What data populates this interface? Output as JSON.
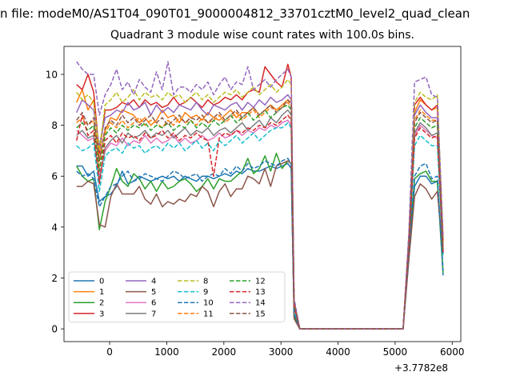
{
  "figure_title": "n file: modeM0/AS1T04_090T01_9000004812_33701cztM0_level2_quad_clean",
  "chart_data": {
    "type": "line",
    "title": "Quadrant 3 module wise count rates with 100.0s bins.",
    "xlabel": "",
    "ylabel": "",
    "x_offset_label": "+3.7782e8",
    "xlim": [
      -800,
      6150
    ],
    "ylim": [
      -0.5,
      11.1
    ],
    "xticks": [
      0,
      1000,
      2000,
      3000,
      4000,
      5000,
      6000
    ],
    "yticks": [
      0,
      2,
      4,
      6,
      8,
      10
    ],
    "grid": false,
    "legend_position": "lower left",
    "legend_columns": 4,
    "x": [
      -580,
      -480,
      -380,
      -280,
      -180,
      -80,
      20,
      120,
      220,
      320,
      420,
      520,
      620,
      720,
      820,
      920,
      1020,
      1120,
      1220,
      1320,
      1420,
      1520,
      1620,
      1720,
      1820,
      1920,
      2020,
      2120,
      2220,
      2320,
      2420,
      2520,
      2620,
      2720,
      2820,
      2920,
      3020,
      3120,
      3180,
      3230,
      3330,
      5140,
      5240,
      5340,
      5440,
      5540,
      5640,
      5740,
      5840
    ],
    "series": [
      {
        "name": "0",
        "color": "#1f77b4",
        "style": "solid",
        "values": [
          6.4,
          6.4,
          6.0,
          6.2,
          5.0,
          5.2,
          5.3,
          5.6,
          6.2,
          5.7,
          5.8,
          6.0,
          5.9,
          5.8,
          5.9,
          6.0,
          5.9,
          6.0,
          5.8,
          6.0,
          5.9,
          5.8,
          6.0,
          6.0,
          5.9,
          6.0,
          6.1,
          6.0,
          6.2,
          6.1,
          6.3,
          6.2,
          6.2,
          6.3,
          6.4,
          6.3,
          6.4,
          6.5,
          6.3,
          0.6,
          0.0,
          0.0,
          3.0,
          5.6,
          6.0,
          6.0,
          5.7,
          5.8,
          2.1
        ]
      },
      {
        "name": "1",
        "color": "#ff7f0e",
        "style": "solid",
        "values": [
          8.9,
          9.4,
          8.6,
          9.0,
          6.6,
          7.8,
          8.3,
          8.2,
          8.6,
          8.5,
          8.4,
          8.1,
          8.3,
          8.0,
          8.2,
          8.6,
          8.3,
          8.4,
          8.1,
          8.5,
          8.3,
          8.4,
          8.2,
          8.5,
          8.3,
          8.2,
          8.4,
          8.6,
          8.3,
          8.5,
          8.5,
          8.7,
          8.4,
          8.6,
          8.8,
          8.6,
          8.8,
          9.0,
          8.9,
          1.0,
          0.0,
          0.0,
          3.5,
          8.5,
          9.0,
          8.8,
          8.6,
          8.7,
          3.4
        ]
      },
      {
        "name": "2",
        "color": "#2ca02c",
        "style": "solid",
        "values": [
          6.4,
          6.0,
          5.8,
          5.9,
          3.9,
          5.0,
          5.6,
          6.3,
          5.8,
          5.6,
          6.1,
          5.9,
          5.5,
          5.8,
          5.4,
          5.8,
          5.5,
          5.6,
          5.8,
          5.9,
          5.7,
          5.4,
          5.6,
          5.9,
          5.5,
          5.9,
          5.8,
          5.8,
          6.0,
          6.2,
          6.7,
          6.1,
          6.3,
          6.8,
          6.2,
          6.9,
          6.3,
          6.6,
          6.5,
          0.5,
          0.0,
          0.0,
          3.0,
          5.9,
          6.1,
          6.2,
          5.8,
          5.8,
          2.2
        ]
      },
      {
        "name": "3",
        "color": "#d62728",
        "style": "solid",
        "values": [
          9.6,
          9.4,
          10.0,
          9.3,
          6.9,
          8.6,
          8.6,
          8.7,
          8.9,
          8.8,
          9.0,
          8.7,
          9.0,
          8.8,
          8.9,
          8.7,
          8.8,
          9.1,
          8.8,
          8.9,
          9.1,
          8.9,
          8.7,
          9.0,
          8.8,
          8.9,
          9.1,
          9.0,
          9.2,
          9.0,
          9.3,
          9.4,
          9.3,
          10.3,
          10.0,
          9.7,
          9.5,
          10.4,
          9.9,
          1.1,
          0.0,
          0.0,
          3.6,
          8.8,
          9.1,
          8.8,
          8.6,
          8.8,
          3.5
        ]
      },
      {
        "name": "4",
        "color": "#9467bd",
        "style": "solid",
        "values": [
          8.5,
          9.0,
          8.8,
          8.6,
          7.2,
          8.3,
          8.4,
          8.6,
          8.5,
          8.9,
          8.6,
          8.7,
          8.9,
          8.4,
          8.8,
          8.5,
          8.7,
          8.5,
          8.8,
          8.7,
          8.6,
          8.9,
          8.6,
          8.4,
          8.8,
          8.7,
          8.6,
          8.8,
          8.9,
          8.6,
          8.9,
          8.7,
          9.0,
          8.8,
          9.1,
          8.9,
          9.0,
          9.2,
          9.0,
          1.0,
          0.0,
          0.0,
          3.4,
          8.4,
          8.8,
          8.5,
          8.3,
          8.3,
          3.1
        ]
      },
      {
        "name": "5",
        "color": "#8c564b",
        "style": "solid",
        "values": [
          5.6,
          5.6,
          5.8,
          5.7,
          4.1,
          4.0,
          5.2,
          5.7,
          5.3,
          5.3,
          5.3,
          5.6,
          5.1,
          4.9,
          5.3,
          4.8,
          5.0,
          4.9,
          5.1,
          5.0,
          5.3,
          5.2,
          5.6,
          5.4,
          4.8,
          5.4,
          5.7,
          5.2,
          5.5,
          5.5,
          6.0,
          5.9,
          5.7,
          6.3,
          5.6,
          6.4,
          6.5,
          6.6,
          6.5,
          0.4,
          0.0,
          0.0,
          2.7,
          5.2,
          5.7,
          5.5,
          5.1,
          5.4,
          2.9
        ]
      },
      {
        "name": "6",
        "color": "#e377c2",
        "style": "solid",
        "values": [
          7.8,
          7.6,
          7.4,
          7.5,
          6.0,
          7.0,
          7.3,
          7.2,
          7.5,
          7.2,
          7.4,
          7.3,
          7.6,
          7.3,
          7.5,
          7.3,
          7.4,
          7.6,
          7.3,
          7.5,
          7.3,
          7.4,
          7.6,
          7.4,
          7.5,
          7.7,
          7.5,
          7.6,
          7.8,
          7.6,
          7.8,
          7.7,
          7.9,
          7.8,
          8.0,
          7.9,
          8.1,
          8.2,
          8.0,
          0.9,
          0.0,
          0.0,
          3.1,
          7.6,
          8.0,
          7.8,
          7.6,
          7.5,
          3.0
        ]
      },
      {
        "name": "7",
        "color": "#7f7f7f",
        "style": "solid",
        "values": [
          7.6,
          7.8,
          7.5,
          7.6,
          5.8,
          7.1,
          7.4,
          7.6,
          7.3,
          7.7,
          7.5,
          7.6,
          7.8,
          7.5,
          7.7,
          7.6,
          7.8,
          7.5,
          7.7,
          7.9,
          7.6,
          7.8,
          7.7,
          7.9,
          7.6,
          7.8,
          7.9,
          7.7,
          7.9,
          8.1,
          7.8,
          8.0,
          8.2,
          7.9,
          8.3,
          8.1,
          8.4,
          8.6,
          8.4,
          0.9,
          0.0,
          0.0,
          3.2,
          7.7,
          8.1,
          7.9,
          7.6,
          7.7,
          3.0
        ]
      },
      {
        "name": "8",
        "color": "#bcbd22",
        "style": "dashed",
        "values": [
          9.3,
          9.0,
          9.2,
          8.9,
          7.0,
          8.8,
          9.0,
          9.3,
          8.9,
          9.1,
          9.4,
          9.0,
          9.3,
          9.1,
          9.2,
          9.0,
          9.3,
          9.1,
          9.2,
          8.9,
          9.1,
          9.3,
          9.0,
          9.2,
          8.9,
          9.1,
          9.3,
          9.2,
          9.4,
          9.1,
          9.3,
          9.5,
          9.2,
          9.4,
          9.6,
          9.3,
          9.5,
          9.8,
          9.6,
          1.1,
          0.0,
          0.0,
          3.6,
          8.9,
          9.3,
          9.1,
          9.0,
          9.2,
          3.4
        ]
      },
      {
        "name": "9",
        "color": "#17becf",
        "style": "dashed",
        "values": [
          7.2,
          7.0,
          7.1,
          7.3,
          5.4,
          6.8,
          7.0,
          7.1,
          6.9,
          7.3,
          7.1,
          7.2,
          6.9,
          7.1,
          7.2,
          7.0,
          7.3,
          7.1,
          7.3,
          7.0,
          7.2,
          7.4,
          7.1,
          7.3,
          7.0,
          7.4,
          7.2,
          7.4,
          7.6,
          7.3,
          7.5,
          7.7,
          7.4,
          7.6,
          7.8,
          7.9,
          7.9,
          8.1,
          7.9,
          0.8,
          0.0,
          0.0,
          3.0,
          7.2,
          7.6,
          7.4,
          7.2,
          7.2,
          2.9
        ]
      },
      {
        "name": "10",
        "color": "#1f77b4",
        "style": "dashed",
        "values": [
          6.2,
          6.0,
          6.1,
          5.9,
          4.8,
          5.2,
          5.6,
          5.7,
          6.0,
          6.2,
          5.8,
          5.9,
          6.1,
          6.0,
          5.9,
          5.8,
          6.0,
          6.2,
          6.1,
          5.9,
          6.0,
          6.1,
          5.8,
          6.0,
          6.1,
          6.0,
          6.3,
          6.1,
          6.4,
          6.2,
          6.5,
          6.3,
          6.4,
          6.6,
          6.5,
          6.4,
          6.6,
          6.7,
          6.5,
          0.6,
          0.0,
          0.0,
          3.0,
          6.0,
          6.4,
          6.5,
          5.9,
          6.0,
          2.3
        ]
      },
      {
        "name": "11",
        "color": "#ff7f0e",
        "style": "dashed",
        "values": [
          8.1,
          8.3,
          8.0,
          8.2,
          6.3,
          7.7,
          8.1,
          7.9,
          8.2,
          7.9,
          8.1,
          8.3,
          8.0,
          8.2,
          8.1,
          7.9,
          8.2,
          8.0,
          8.3,
          8.1,
          8.2,
          8.0,
          8.3,
          8.1,
          8.2,
          8.4,
          8.1,
          8.3,
          8.5,
          8.2,
          8.4,
          8.6,
          8.3,
          8.5,
          8.7,
          8.6,
          8.7,
          8.9,
          8.7,
          1.0,
          0.0,
          0.0,
          3.3,
          8.2,
          8.6,
          8.4,
          8.2,
          8.2,
          3.1
        ]
      },
      {
        "name": "12",
        "color": "#2ca02c",
        "style": "dashed",
        "values": [
          7.9,
          8.1,
          7.8,
          8.0,
          6.2,
          7.6,
          7.9,
          7.7,
          8.0,
          7.8,
          8.0,
          7.9,
          8.1,
          7.8,
          8.0,
          7.9,
          8.1,
          7.8,
          8.0,
          7.9,
          8.2,
          7.9,
          8.1,
          7.9,
          8.2,
          8.0,
          8.2,
          8.4,
          8.1,
          8.3,
          8.5,
          8.2,
          8.4,
          8.6,
          8.3,
          8.5,
          8.7,
          8.8,
          8.6,
          0.9,
          0.0,
          0.0,
          3.2,
          7.9,
          8.3,
          8.1,
          7.9,
          8.0,
          3.0
        ]
      },
      {
        "name": "13",
        "color": "#d62728",
        "style": "dashed",
        "values": [
          7.4,
          8.4,
          7.6,
          7.8,
          5.7,
          7.4,
          7.6,
          7.3,
          7.7,
          7.5,
          7.6,
          7.4,
          7.7,
          7.5,
          7.6,
          7.8,
          7.5,
          7.7,
          7.4,
          7.6,
          7.5,
          7.7,
          7.5,
          7.4,
          6.0,
          7.5,
          7.7,
          7.6,
          7.8,
          7.7,
          7.9,
          7.8,
          8.0,
          7.9,
          8.1,
          8.0,
          8.2,
          8.4,
          8.2,
          0.9,
          0.0,
          0.0,
          3.2,
          7.5,
          7.9,
          7.7,
          7.5,
          7.6,
          3.0
        ]
      },
      {
        "name": "14",
        "color": "#9467bd",
        "style": "dashed",
        "values": [
          10.5,
          10.2,
          10.0,
          10.0,
          8.4,
          9.2,
          9.6,
          10.2,
          9.4,
          9.7,
          9.2,
          9.8,
          9.5,
          9.3,
          10.1,
          9.4,
          10.5,
          9.2,
          9.5,
          9.5,
          9.3,
          9.6,
          9.4,
          9.7,
          9.2,
          9.6,
          9.9,
          9.4,
          9.7,
          9.6,
          10.3,
          9.4,
          9.6,
          9.8,
          9.5,
          9.8,
          10.0,
          10.2,
          9.9,
          1.2,
          0.0,
          0.0,
          3.8,
          9.7,
          9.8,
          9.9,
          9.2,
          9.1,
          3.6
        ]
      },
      {
        "name": "15",
        "color": "#8c564b",
        "style": "dashed",
        "values": [
          8.2,
          8.5,
          8.0,
          8.3,
          6.6,
          7.9,
          8.2,
          8.0,
          8.4,
          8.1,
          8.3,
          8.0,
          8.2,
          8.4,
          8.1,
          8.3,
          8.0,
          8.2,
          8.4,
          8.1,
          8.3,
          8.2,
          8.4,
          8.1,
          8.3,
          8.5,
          8.2,
          8.4,
          8.6,
          8.3,
          8.5,
          8.7,
          8.4,
          8.6,
          8.8,
          8.5,
          8.7,
          9.0,
          8.8,
          1.0,
          0.0,
          0.0,
          3.3,
          8.1,
          8.5,
          8.3,
          8.1,
          8.2,
          3.1
        ]
      }
    ]
  }
}
